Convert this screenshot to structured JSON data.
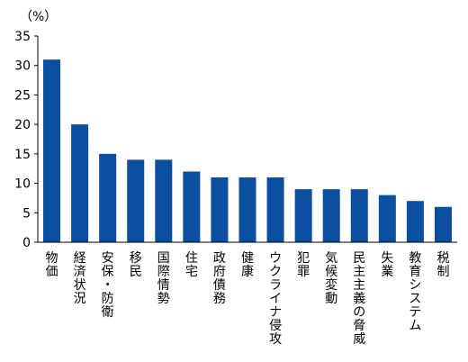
{
  "chart_data": {
    "type": "bar",
    "unit_label": "（%）",
    "categories": [
      "物価",
      "経済状況",
      "安保・防衛",
      "移民",
      "国際情勢",
      "住宅",
      "政府債務",
      "健康",
      "ウクライナ侵攻",
      "犯罪",
      "気候変動",
      "民主主義の脅威",
      "失業",
      "教育システム",
      "税制"
    ],
    "values": [
      31,
      20,
      15,
      14,
      14,
      12,
      11,
      11,
      11,
      9,
      9,
      9,
      8,
      7,
      6
    ],
    "y_ticks": [
      0,
      5,
      10,
      15,
      20,
      25,
      30,
      35
    ],
    "ylim": [
      0,
      35
    ],
    "grid": false,
    "legend": "none",
    "bar_color": "#0a4fa0"
  }
}
